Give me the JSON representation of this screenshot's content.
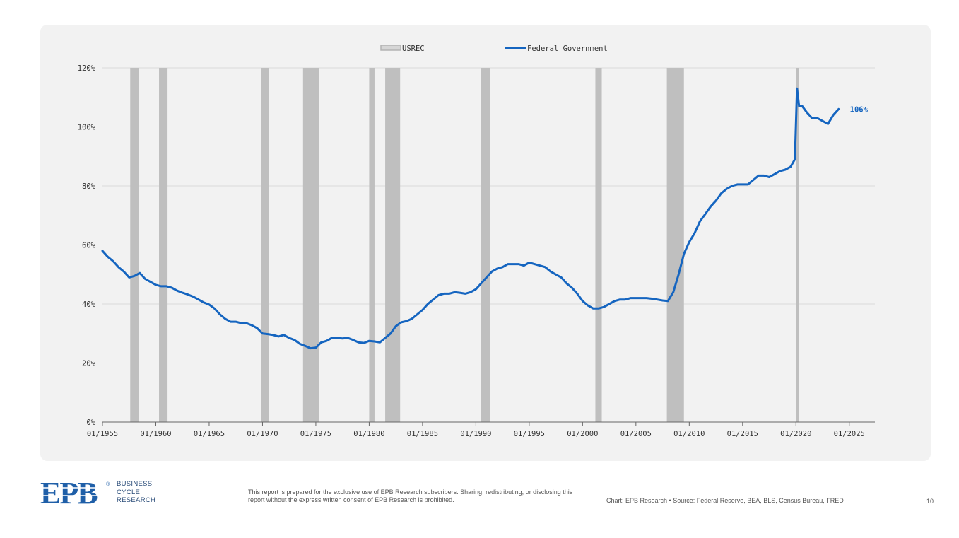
{
  "chart_data": {
    "type": "line",
    "title": "",
    "xlabel": "",
    "ylabel": "",
    "x_range": [
      1955.0,
      2027.4
    ],
    "ylim": [
      0,
      120
    ],
    "y_ticks": [
      "0%",
      "20%",
      "40%",
      "60%",
      "80%",
      "100%",
      "120%"
    ],
    "x_ticks": [
      "01/1955",
      "01/1960",
      "01/1965",
      "01/1970",
      "01/1975",
      "01/1980",
      "01/1985",
      "01/1990",
      "01/1995",
      "01/2000",
      "01/2005",
      "01/2010",
      "01/2015",
      "01/2020",
      "01/2025"
    ],
    "grid": "horizontal",
    "legend": {
      "placement": "top-center",
      "recession_label": "USREC",
      "series_label": "Federal Government"
    },
    "recessions": [
      [
        1957.6,
        1958.4
      ],
      [
        1960.3,
        1961.1
      ],
      [
        1969.9,
        1970.6
      ],
      [
        1973.8,
        1975.3
      ],
      [
        1980.0,
        1980.5
      ],
      [
        1981.5,
        1982.9
      ],
      [
        1990.5,
        1991.3
      ],
      [
        2001.2,
        2001.8
      ],
      [
        2007.9,
        2009.5
      ],
      [
        2020.0,
        2020.3
      ]
    ],
    "series": [
      {
        "name": "Federal Government",
        "color": "#1565c0",
        "x": [
          1955.0,
          1955.5,
          1956.0,
          1956.5,
          1957.0,
          1957.5,
          1958.0,
          1958.5,
          1959.0,
          1959.5,
          1960.0,
          1960.5,
          1961.0,
          1961.5,
          1962.0,
          1962.5,
          1963.0,
          1963.5,
          1964.0,
          1964.5,
          1965.0,
          1965.5,
          1966.0,
          1966.5,
          1967.0,
          1967.5,
          1968.0,
          1968.5,
          1969.0,
          1969.5,
          1970.0,
          1970.5,
          1971.0,
          1971.5,
          1972.0,
          1972.5,
          1973.0,
          1973.5,
          1974.0,
          1974.5,
          1975.0,
          1975.5,
          1976.0,
          1976.5,
          1977.0,
          1977.5,
          1978.0,
          1978.5,
          1979.0,
          1979.5,
          1980.0,
          1980.5,
          1981.0,
          1981.5,
          1982.0,
          1982.5,
          1983.0,
          1983.5,
          1984.0,
          1984.5,
          1985.0,
          1985.5,
          1986.0,
          1986.5,
          1987.0,
          1987.5,
          1988.0,
          1988.5,
          1989.0,
          1989.5,
          1990.0,
          1990.5,
          1991.0,
          1991.5,
          1992.0,
          1992.5,
          1993.0,
          1993.5,
          1994.0,
          1994.5,
          1995.0,
          1995.5,
          1996.0,
          1996.5,
          1997.0,
          1997.5,
          1998.0,
          1998.5,
          1999.0,
          1999.5,
          2000.0,
          2000.5,
          2001.0,
          2001.5,
          2002.0,
          2002.5,
          2003.0,
          2003.5,
          2004.0,
          2004.5,
          2005.0,
          2005.5,
          2006.0,
          2006.5,
          2007.0,
          2007.5,
          2008.0,
          2008.5,
          2009.0,
          2009.5,
          2010.0,
          2010.5,
          2011.0,
          2011.5,
          2012.0,
          2012.5,
          2013.0,
          2013.5,
          2014.0,
          2014.5,
          2015.0,
          2015.5,
          2016.0,
          2016.5,
          2017.0,
          2017.5,
          2018.0,
          2018.5,
          2019.0,
          2019.5,
          2019.9,
          2020.1,
          2020.3,
          2020.6,
          2021.0,
          2021.5,
          2022.0,
          2022.5,
          2023.0,
          2023.5,
          2024.0
        ],
        "values": [
          58.0,
          56.0,
          54.5,
          52.5,
          51.0,
          49.0,
          49.5,
          50.5,
          48.5,
          47.5,
          46.5,
          46.0,
          46.0,
          45.5,
          44.5,
          43.8,
          43.2,
          42.5,
          41.5,
          40.5,
          39.8,
          38.5,
          36.5,
          35.0,
          34.0,
          34.0,
          33.5,
          33.5,
          32.8,
          31.8,
          30.0,
          29.8,
          29.5,
          29.0,
          29.5,
          28.5,
          27.8,
          26.5,
          25.8,
          25.0,
          25.2,
          27.0,
          27.5,
          28.5,
          28.5,
          28.3,
          28.5,
          27.8,
          27.0,
          26.8,
          27.5,
          27.3,
          27.0,
          28.5,
          30.0,
          32.5,
          33.8,
          34.2,
          35.0,
          36.5,
          38.0,
          40.0,
          41.5,
          43.0,
          43.5,
          43.5,
          44.0,
          43.8,
          43.5,
          44.0,
          45.0,
          47.0,
          49.0,
          51.0,
          52.0,
          52.5,
          53.5,
          53.5,
          53.5,
          53.0,
          54.0,
          53.5,
          53.0,
          52.5,
          51.0,
          50.0,
          49.0,
          47.0,
          45.5,
          43.5,
          41.0,
          39.5,
          38.5,
          38.5,
          39.0,
          40.0,
          41.0,
          41.5,
          41.5,
          42.0,
          42.0,
          42.0,
          42.0,
          41.8,
          41.5,
          41.2,
          41.0,
          44.0,
          50.0,
          57.0,
          61.0,
          64.0,
          68.0,
          70.5,
          73.0,
          75.0,
          77.5,
          79.0,
          80.0,
          80.5,
          80.5,
          80.5,
          82.0,
          83.5,
          83.5,
          83.0,
          84.0,
          85.0,
          85.5,
          86.5,
          89.0,
          113.0,
          107.0,
          107.0,
          105.0,
          103.0,
          103.0,
          102.0,
          101.0,
          104.0,
          106.0
        ]
      }
    ],
    "end_annotation": "106%"
  },
  "footer": {
    "logo_text": "EPB",
    "logo_mark": "®",
    "tagline": [
      "BUSINESS",
      "CYCLE",
      "RESEARCH"
    ],
    "disclaimer": "This report is prepared for the exclusive use of EPB Research subscribers. Sharing, redistributing, or disclosing this report without the express written consent of EPB Research is prohibited.",
    "source": "Chart: EPB Research  •  Source: Federal Reserve, BEA, BLS, Census Bureau, FRED",
    "page_number": "10"
  },
  "colors": {
    "series": "#1565c0",
    "recession": "#bfbfbf",
    "panel": "#f2f2f2",
    "brand": "#1f5fa8"
  }
}
